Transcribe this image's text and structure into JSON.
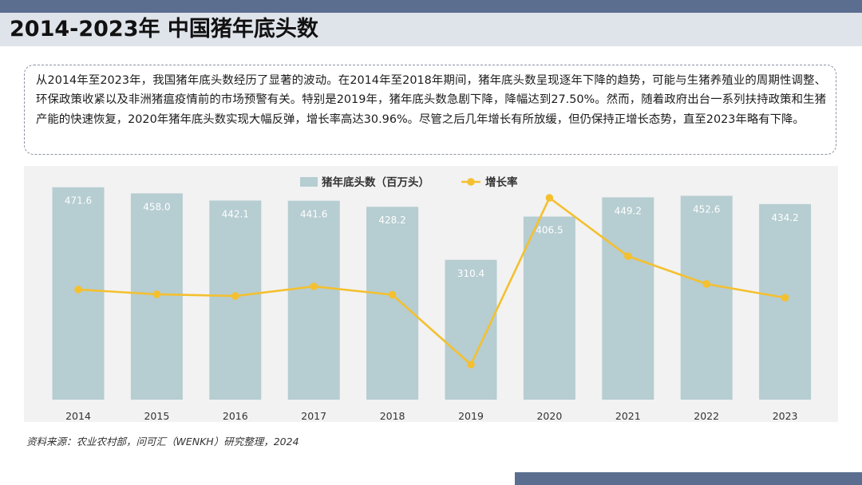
{
  "header": {
    "title": "2014-2023年 中国猪年底头数"
  },
  "summary": {
    "text": "从2014年至2023年，我国猪年底头数经历了显著的波动。在2014年至2018年期间，猪年底头数呈现逐年下降的趋势，可能与生猪养殖业的周期性调整、环保政策收紧以及非洲猪瘟疫情前的市场预警有关。特别是2019年，猪年底头数急剧下降，降幅达到27.50%。然而，随着政府出台一系列扶持政策和生猪产能的快速恢复，2020年猪年底头数实现大幅反弹，增长率高达30.96%。尽管之后几年增长有所放缓，但仍保持正增长态势，直至2023年略有下降。"
  },
  "chart_data": {
    "type": "bar",
    "categories": [
      "2014",
      "2015",
      "2016",
      "2017",
      "2018",
      "2019",
      "2020",
      "2021",
      "2022",
      "2023"
    ],
    "series": [
      {
        "name": "猪年底头数（百万头）",
        "type": "bar",
        "values": [
          471.6,
          458.0,
          442.1,
          441.6,
          428.2,
          310.4,
          406.5,
          449.2,
          452.6,
          434.2
        ],
        "labels": [
          "471.6",
          "458.0",
          "442.1",
          "441.6",
          "428.2",
          "310.4",
          "406.5",
          "449.2",
          "452.6",
          "434.2"
        ],
        "color": "#b6cdd1"
      },
      {
        "name": "增长率",
        "type": "line",
        "values": [
          null,
          -2.88,
          -3.47,
          -0.11,
          -3.03,
          -27.5,
          30.96,
          10.5,
          0.76,
          -4.07
        ],
        "color": "#f4c030"
      }
    ],
    "legend_position": "top-center",
    "grid": false,
    "ylim": [
      0,
      480
    ]
  },
  "footer": {
    "source": "资料来源：农业农村部，问可汇（WENKH）研究整理，2024"
  },
  "colors": {
    "accent_bar": "#5b6e90",
    "title_band": "#dfe3ea",
    "chart_bg": "#f2f2f2",
    "bar": "#b6cdd1",
    "line": "#f4c030",
    "bar_label": "#ffffff",
    "axis_label": "#333333"
  }
}
